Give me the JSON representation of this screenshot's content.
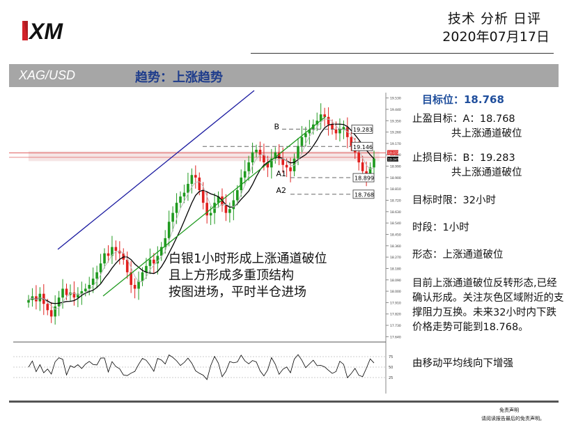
{
  "header": {
    "logo_text": "XM",
    "title": "技术 分析 日评",
    "date": "2020年07月17日"
  },
  "band": {
    "symbol": "XAG/USD",
    "trend": "趋势：上涨趋势"
  },
  "chart_data": {
    "type": "candlestick",
    "symbol": "XAG/USD",
    "timeframe": "1小时",
    "y_ticks": [
      "19.530",
      "19.440",
      "19.350",
      "19.260",
      "19.170",
      "19.080",
      "18.990",
      "18.900",
      "18.810",
      "18.720",
      "18.630",
      "18.540",
      "18.450",
      "18.360",
      "18.270",
      "18.180",
      "18.090",
      "18.000",
      "17.910",
      "17.820",
      "17.730",
      "17.640"
    ],
    "ylim": [
      17.62,
      19.55
    ],
    "last_price_label": "19.047",
    "red_line_label": "19.072",
    "levels": [
      {
        "name": "B",
        "value": 19.283
      },
      {
        "name": "",
        "value": 19.146
      },
      {
        "name": "A1",
        "value": 18.899
      },
      {
        "name": "A2",
        "value": 18.768
      }
    ],
    "closes": [
      17.93,
      17.96,
      17.92,
      17.98,
      17.9,
      17.85,
      17.8,
      17.88,
      17.95,
      18.02,
      17.97,
      17.99,
      17.95,
      17.98,
      18.0,
      18.02,
      18.05,
      18.1,
      18.15,
      18.22,
      18.3,
      18.28,
      18.35,
      18.32,
      18.3,
      18.25,
      18.15,
      18.05,
      18.02,
      18.08,
      18.15,
      18.2,
      18.25,
      18.22,
      18.28,
      18.35,
      18.42,
      18.55,
      18.62,
      18.7,
      18.75,
      18.78,
      18.85,
      18.92,
      18.9,
      18.8,
      18.7,
      18.6,
      18.62,
      18.7,
      18.75,
      18.68,
      18.62,
      18.65,
      18.72,
      18.8,
      18.9,
      18.95,
      19.02,
      19.1,
      19.12,
      19.08,
      19.02,
      18.98,
      19.05,
      19.1,
      19.05,
      19.0,
      18.98,
      18.95,
      19.05,
      19.15,
      19.22,
      19.25,
      19.28,
      19.32,
      19.35,
      19.4,
      19.38,
      19.32,
      19.28,
      19.25,
      19.28,
      19.3,
      19.22,
      19.15,
      19.1,
      19.02,
      18.95,
      18.92,
      18.98,
      19.05
    ],
    "rsi": {
      "ticks": [
        "75",
        "50",
        "25"
      ]
    },
    "annotation": [
      "白银1小时形成上涨通道破位",
      "且上方形成多重顶结构",
      "按图进场，平时半仓进场"
    ]
  },
  "panel": {
    "target_label": "目标位：18.768",
    "tp_label": "止盈目标：A：18.768",
    "tp_note": "共上涨通道破位",
    "sl_label": "止损目标：B：19.283",
    "sl_note": "共上涨通道破位",
    "time_limit": "目标时限：32小时",
    "period": "时段：1小时",
    "pattern": "形态：上涨通道破位",
    "description": "目前上涨通道破位反转形态,已经确认形成。关注灰色区域附近的支撑阻力互换。未来32小时内下跌价格走势可能到18.768。",
    "ma_note": "由移动平均线向下增强"
  },
  "footer": {
    "disclaimer_title": "免责声明",
    "disclaimer_text": "请阅读报告最后的免责声明。"
  },
  "colors": {
    "band": "#a6a6a6",
    "trend_text": "#1f3d8c",
    "channel_upper": "#1a1aa0",
    "channel_lower": "#1f9a1f",
    "bull": "#1f9a1f",
    "bear": "#e0201e",
    "red_line": "#e06060"
  }
}
